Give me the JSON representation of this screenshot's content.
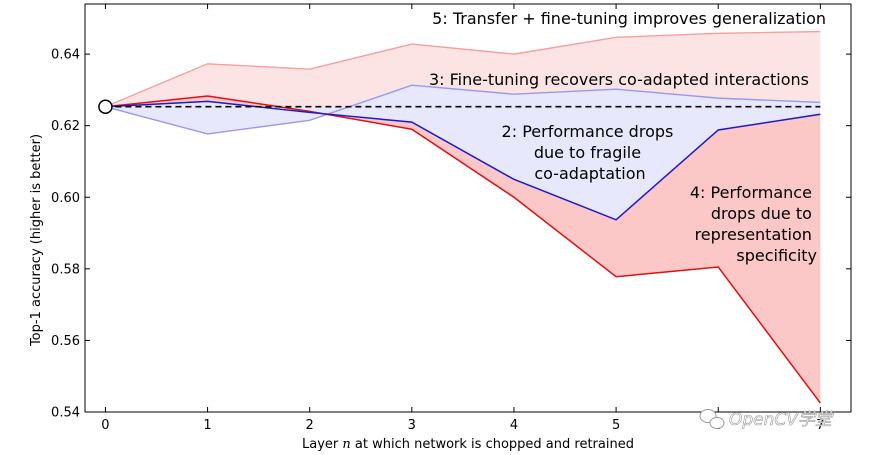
{
  "chart_data": {
    "type": "line",
    "xlabel_parts": [
      "Layer ",
      "n",
      " at which network is chopped and retrained"
    ],
    "ylabel": "Top-1 accuracy (higher is better)",
    "x": [
      0,
      1,
      2,
      3,
      4,
      5,
      6,
      7
    ],
    "xlim": [
      -0.2,
      7.3
    ],
    "ylim": [
      0.54,
      0.654
    ],
    "xticks": [
      0,
      1,
      2,
      3,
      4,
      5,
      6,
      7
    ],
    "yticks": [
      0.54,
      0.56,
      0.58,
      0.6,
      0.62,
      0.64
    ],
    "ytick_labels": [
      "0.54",
      "0.56",
      "0.58",
      "0.60",
      "0.62",
      "0.64"
    ],
    "grid": false,
    "baseline": 0.6253,
    "series": [
      {
        "key": "transfer_ft",
        "color": "#f4a0a0",
        "values": [
          0.6253,
          0.6373,
          0.6358,
          0.6428,
          0.64,
          0.6447,
          0.6458,
          0.6463
        ]
      },
      {
        "key": "selffer_ft",
        "color": "#9999ee",
        "values": [
          0.6253,
          0.6177,
          0.6215,
          0.6313,
          0.6288,
          0.6302,
          0.6277,
          0.6265
        ]
      },
      {
        "key": "selffer",
        "color": "#1a1acc",
        "values": [
          0.6253,
          0.6268,
          0.6237,
          0.621,
          0.605,
          0.5937,
          0.6188,
          0.6232
        ]
      },
      {
        "key": "transfer",
        "color": "#dd1111",
        "values": [
          0.6253,
          0.6283,
          0.624,
          0.619,
          0.6,
          0.5778,
          0.5805,
          0.5425
        ]
      }
    ],
    "annotations": [
      {
        "text": "5: Transfer + fine-tuning improves generalization"
      },
      {
        "text": "3: Fine-tuning recovers co-adapted interactions"
      },
      {
        "lines": [
          "2: Performance drops",
          "due to fragile",
          "co-adaptation"
        ]
      },
      {
        "lines": [
          "4: Performance",
          "drops due to",
          "representation",
          "specificity"
        ]
      }
    ],
    "colors": {
      "fill_pink": "#fde4e4",
      "fill_lavender": "#e8e8fc",
      "fill_red": "#fcc7c7"
    }
  },
  "watermark": "OpenCV学堂"
}
